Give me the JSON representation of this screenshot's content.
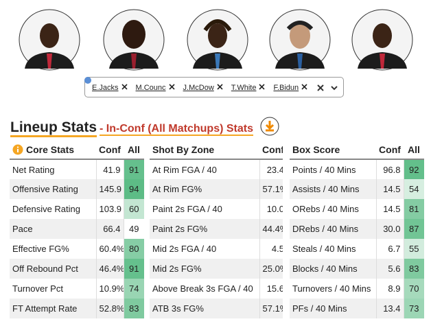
{
  "selector": {
    "players": [
      "E.Jacks",
      "M.Counc",
      "J.McDow",
      "T.White",
      "F.Bidun"
    ]
  },
  "header": {
    "title": "Lineup Stats",
    "subtitle": "- In-Conf (All Matchups) Stats"
  },
  "tables": [
    {
      "title": "Core Stats",
      "columns": [
        "Conf",
        "All"
      ],
      "rows": [
        [
          "Net Rating",
          "41.9",
          91
        ],
        [
          "Offensive Rating",
          "145.9",
          94
        ],
        [
          "Defensive Rating",
          "103.9",
          60
        ],
        [
          "Pace",
          "66.4",
          49
        ],
        [
          "Effective FG%",
          "60.4%",
          80
        ],
        [
          "Off Rebound Pct",
          "46.4%",
          91
        ],
        [
          "Turnover Pct",
          "10.9%",
          74
        ],
        [
          "FT Attempt Rate",
          "52.8%",
          83
        ]
      ]
    },
    {
      "title": "Shot By Zone",
      "columns": [
        "Conf"
      ],
      "rows": [
        [
          "At Rim FGA / 40",
          "23.4"
        ],
        [
          "At Rim FG%",
          "57.1%"
        ],
        [
          "Paint 2s FGA / 40",
          "10.0"
        ],
        [
          "Paint 2s FG%",
          "44.4%"
        ],
        [
          "Mid 2s FGA / 40",
          "4.5"
        ],
        [
          "Mid 2s FG%",
          "25.0%"
        ],
        [
          "Above Break 3s FGA / 40",
          "15.6"
        ],
        [
          "ATB 3s FG%",
          "57.1%"
        ]
      ]
    },
    {
      "title": "Box Score",
      "columns": [
        "Conf",
        "All"
      ],
      "rows": [
        [
          "Points / 40 Mins",
          "96.8",
          92
        ],
        [
          "Assists / 40 Mins",
          "14.5",
          54
        ],
        [
          "ORebs / 40 Mins",
          "14.5",
          81
        ],
        [
          "DRebs / 40 Mins",
          "30.0",
          87
        ],
        [
          "Steals / 40 Mins",
          "6.7",
          55
        ],
        [
          "Blocks / 40 Mins",
          "5.6",
          83
        ],
        [
          "Turnovers / 40 Mins",
          "8.9",
          70
        ],
        [
          "PFs / 40 Mins",
          "13.4",
          73
        ]
      ]
    }
  ]
}
